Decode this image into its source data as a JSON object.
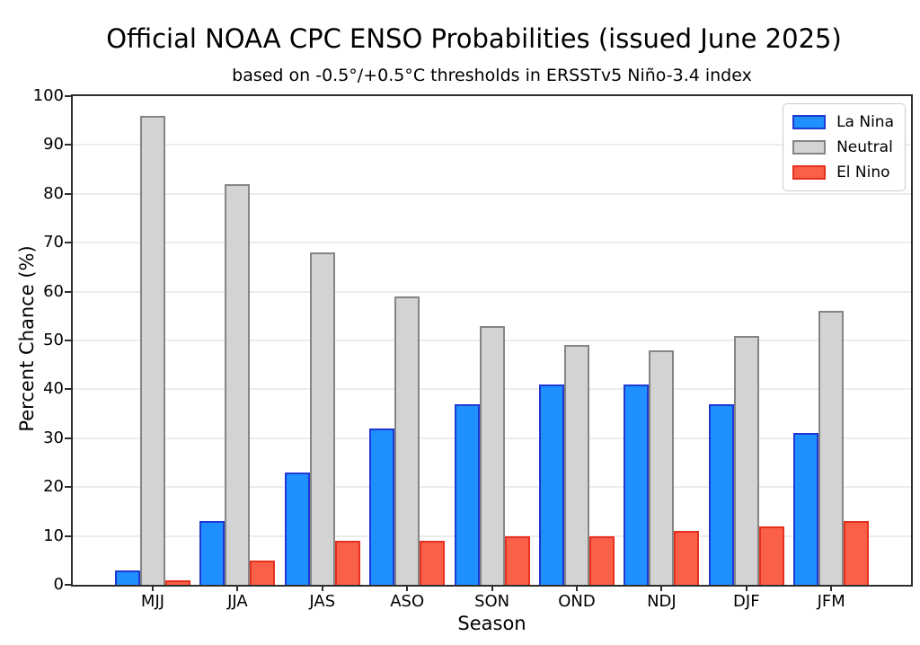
{
  "chart_data": {
    "type": "bar",
    "title": "Official NOAA CPC ENSO Probabilities (issued June 2025)",
    "subtitle": "based on -0.5°/+0.5°C thresholds in ERSSTv5 Niño-3.4 index",
    "xlabel": "Season",
    "ylabel": "Percent Chance (%)",
    "ylim": [
      0,
      100
    ],
    "yticks": [
      0,
      10,
      20,
      30,
      40,
      50,
      60,
      70,
      80,
      90,
      100
    ],
    "grid": true,
    "legend_position": "upper right",
    "categories": [
      "MJJ",
      "JJA",
      "JAS",
      "ASO",
      "SON",
      "OND",
      "NDJ",
      "DJF",
      "JFM"
    ],
    "series": [
      {
        "name": "La Nina",
        "fill": "#1E90FF",
        "edge": "#2038D4",
        "values": [
          3,
          13,
          23,
          32,
          37,
          41,
          41,
          37,
          31
        ]
      },
      {
        "name": "Neutral",
        "fill": "#D3D3D3",
        "edge": "#858585",
        "values": [
          96,
          82,
          68,
          59,
          53,
          49,
          48,
          51,
          56
        ]
      },
      {
        "name": "El Nino",
        "fill": "#FA5F48",
        "edge": "#E8301F",
        "values": [
          1,
          5,
          9,
          9,
          10,
          10,
          11,
          12,
          13
        ]
      }
    ]
  }
}
